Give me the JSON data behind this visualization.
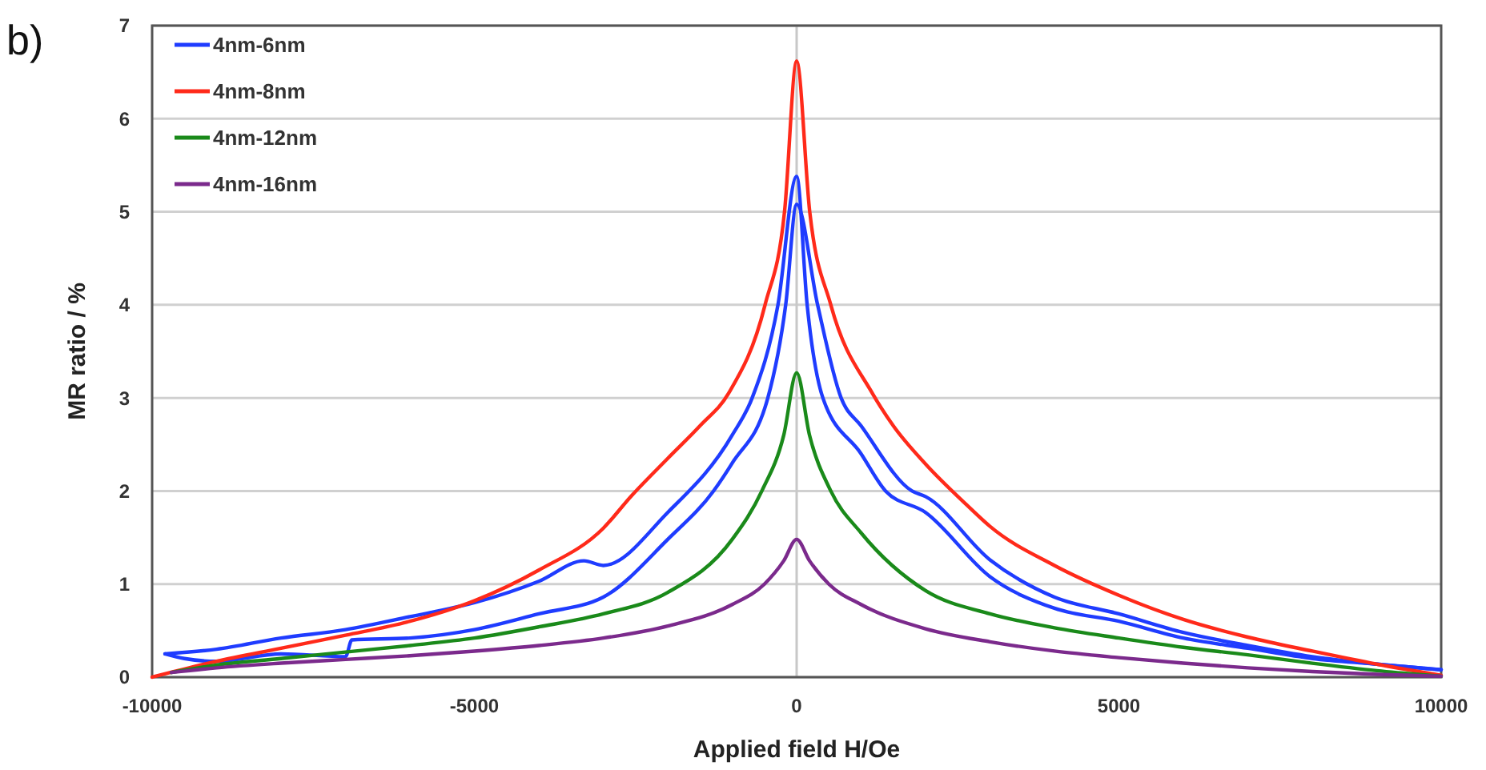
{
  "chart_data": {
    "type": "line",
    "xlabel": "Applied field H/Oe",
    "ylabel": "MR ratio / %",
    "annotations": [
      "b)"
    ],
    "xlim": [
      -10000,
      10000
    ],
    "xticks": [
      -10000,
      -5000,
      0,
      5000,
      10000
    ],
    "ylim": [
      0,
      7
    ],
    "yticks": [
      0,
      1,
      2,
      3,
      4,
      5,
      6,
      7
    ],
    "grid": "y",
    "legend": "top left",
    "marker": "none",
    "line_style": "solid",
    "ref_lines": [
      {
        "axis": "x",
        "value": 0,
        "color": "#c8c8c8"
      }
    ],
    "series": [
      {
        "name": "4nm-6nm",
        "color": "#1f3cff",
        "x": [
          -9800,
          -9000,
          -8000,
          -7000,
          -6000,
          -5000,
          -4000,
          -3300,
          -3000,
          -2000,
          -1000,
          -690,
          -290,
          0,
          163,
          407,
          1000,
          1380,
          2000,
          3000,
          4000,
          5000,
          6000,
          7000,
          8000,
          9000,
          10000
        ],
        "values": [
          0.25,
          0.3,
          0.42,
          0.51,
          0.65,
          0.8,
          1.03,
          1.25,
          1.2,
          1.77,
          2.6,
          3,
          4,
          5.38,
          4,
          3,
          2.4,
          2,
          1.77,
          1.08,
          0.74,
          0.6,
          0.42,
          0.31,
          0.2,
          0.14,
          0.08
        ]
      },
      {
        "color": "#1f3cff",
        "x": [
          -9800,
          -9500,
          -9000,
          -8000,
          -7000,
          -6900,
          -6000,
          -5000,
          -4000,
          -3000,
          -2000,
          -1290,
          -1000,
          -447,
          -170,
          0,
          325,
          690,
          1000,
          1790,
          2000,
          3000,
          4000,
          5000,
          6000,
          7000,
          8000,
          9000,
          10000
        ],
        "values": [
          0.25,
          0.2,
          0.17,
          0.25,
          0.22,
          0.4,
          0.42,
          0.51,
          0.68,
          0.86,
          1.48,
          2,
          2.3,
          3,
          4,
          5.08,
          4,
          3,
          2.7,
          2,
          1.94,
          1.26,
          0.86,
          0.68,
          0.48,
          0.34,
          0.22,
          0.14,
          0.08
        ]
      },
      {
        "name": "4nm-8nm",
        "color": "#ff2a1a",
        "x": [
          -10000,
          -9000,
          -8000,
          -7000,
          -6000,
          -5000,
          -4000,
          -3000,
          -2560,
          -2000,
          -1500,
          -1056,
          -490,
          -188,
          0,
          203,
          530,
          1175,
          1500,
          2000,
          2640,
          3000,
          4000,
          5000,
          6000,
          7000,
          8000,
          9000,
          10000
        ],
        "values": [
          0,
          0.17,
          0.31,
          0.45,
          0.6,
          0.82,
          1.15,
          1.6,
          1.95,
          2.35,
          2.7,
          3.05,
          4,
          5,
          6.62,
          5,
          4,
          3.05,
          2.7,
          2.29,
          1.85,
          1.62,
          1.2,
          0.88,
          0.62,
          0.43,
          0.28,
          0.14,
          0.02
        ]
      },
      {
        "name": "4nm-12nm",
        "color": "#1a8a1a",
        "x": [
          -9700,
          -9000,
          -8000,
          -7000,
          -6000,
          -5000,
          -4000,
          -3000,
          -2000,
          -1000,
          -540,
          -200,
          0,
          200,
          530,
          1000,
          2000,
          3000,
          4000,
          5000,
          6000,
          7000,
          8000,
          9000,
          10000
        ],
        "values": [
          0.05,
          0.13,
          0.2,
          0.27,
          0.34,
          0.42,
          0.54,
          0.68,
          0.91,
          1.48,
          2,
          2.6,
          3.27,
          2.6,
          2,
          1.55,
          0.93,
          0.68,
          0.53,
          0.42,
          0.32,
          0.24,
          0.15,
          0.07,
          0.01
        ]
      },
      {
        "name": "4nm-16nm",
        "color": "#7b2a8c",
        "x": [
          -9700,
          -9000,
          -8000,
          -7000,
          -6000,
          -5000,
          -4000,
          -3000,
          -2000,
          -1000,
          -500,
          -200,
          0,
          200,
          500,
          1000,
          2000,
          3000,
          4000,
          5000,
          6000,
          7000,
          8000,
          9000,
          10000
        ],
        "values": [
          0.05,
          0.1,
          0.15,
          0.19,
          0.23,
          0.28,
          0.34,
          0.42,
          0.55,
          0.78,
          1,
          1.25,
          1.48,
          1.25,
          1,
          0.78,
          0.52,
          0.38,
          0.28,
          0.21,
          0.15,
          0.1,
          0.06,
          0.03,
          0.01
        ]
      }
    ]
  }
}
